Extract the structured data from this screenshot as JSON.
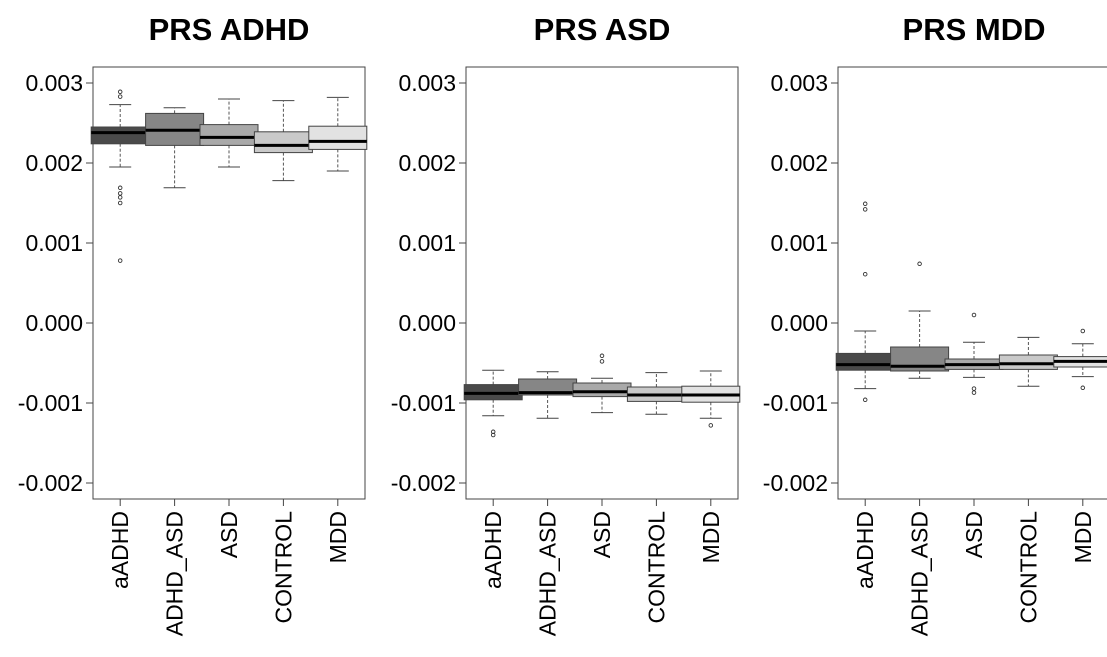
{
  "chart_data": [
    {
      "type": "box",
      "title": "PRS ADHD",
      "xlabel": "",
      "ylabel": "",
      "ylim": [
        -0.0022,
        0.0032
      ],
      "yticks": [
        "0.003",
        "0.002",
        "0.001",
        "0.000",
        "-0.001",
        "-0.002"
      ],
      "ytick_values": [
        0.003,
        0.002,
        0.001,
        0.0,
        -0.001,
        -0.002
      ],
      "categories": [
        "aADHD",
        "ADHD_ASD",
        "ASD",
        "CONTROL",
        "MDD"
      ],
      "colors": [
        "#4a4a4a",
        "#868686",
        "#a9a9a9",
        "#c9c9c9",
        "#e2e2e2"
      ],
      "boxes": [
        {
          "q1": 0.00224,
          "median": 0.00238,
          "q3": 0.00245,
          "whisker_low": 0.00195,
          "whisker_high": 0.00273,
          "outliers": [
            0.00289,
            0.00283,
            0.00169,
            0.00162,
            0.00157,
            0.0015,
            0.00078
          ]
        },
        {
          "q1": 0.00222,
          "median": 0.00241,
          "q3": 0.00262,
          "whisker_low": 0.00169,
          "whisker_high": 0.00269,
          "outliers": []
        },
        {
          "q1": 0.00222,
          "median": 0.00232,
          "q3": 0.00248,
          "whisker_low": 0.00195,
          "whisker_high": 0.0028,
          "outliers": []
        },
        {
          "q1": 0.00213,
          "median": 0.00222,
          "q3": 0.00239,
          "whisker_low": 0.00178,
          "whisker_high": 0.00278,
          "outliers": []
        },
        {
          "q1": 0.00217,
          "median": 0.00227,
          "q3": 0.00246,
          "whisker_low": 0.0019,
          "whisker_high": 0.00282,
          "outliers": []
        }
      ]
    },
    {
      "type": "box",
      "title": "PRS ASD",
      "xlabel": "",
      "ylabel": "",
      "ylim": [
        -0.0022,
        0.0032
      ],
      "yticks": [
        "0.003",
        "0.002",
        "0.001",
        "0.000",
        "-0.001",
        "-0.002"
      ],
      "ytick_values": [
        0.003,
        0.002,
        0.001,
        0.0,
        -0.001,
        -0.002
      ],
      "categories": [
        "aADHD",
        "ADHD_ASD",
        "ASD",
        "CONTROL",
        "MDD"
      ],
      "colors": [
        "#4a4a4a",
        "#868686",
        "#a9a9a9",
        "#c9c9c9",
        "#e2e2e2"
      ],
      "boxes": [
        {
          "q1": -0.00096,
          "median": -0.00088,
          "q3": -0.00077,
          "whisker_low": -0.00116,
          "whisker_high": -0.00059,
          "outliers": [
            -0.00136,
            -0.0014
          ]
        },
        {
          "q1": -0.0009,
          "median": -0.00087,
          "q3": -0.0007,
          "whisker_low": -0.00119,
          "whisker_high": -0.00061,
          "outliers": []
        },
        {
          "q1": -0.00092,
          "median": -0.00086,
          "q3": -0.00075,
          "whisker_low": -0.00112,
          "whisker_high": -0.00069,
          "outliers": [
            -0.00041,
            -0.00048
          ]
        },
        {
          "q1": -0.00098,
          "median": -0.0009,
          "q3": -0.0008,
          "whisker_low": -0.00114,
          "whisker_high": -0.00062,
          "outliers": []
        },
        {
          "q1": -0.00099,
          "median": -0.0009,
          "q3": -0.00079,
          "whisker_low": -0.00119,
          "whisker_high": -0.0006,
          "outliers": [
            -0.00128
          ]
        }
      ]
    },
    {
      "type": "box",
      "title": "PRS MDD",
      "xlabel": "",
      "ylabel": "",
      "ylim": [
        -0.0022,
        0.0032
      ],
      "yticks": [
        "0.003",
        "0.002",
        "0.001",
        "0.000",
        "-0.001",
        "-0.002"
      ],
      "ytick_values": [
        0.003,
        0.002,
        0.001,
        0.0,
        -0.001,
        -0.002
      ],
      "categories": [
        "aADHD",
        "ADHD_ASD",
        "ASD",
        "CONTROL",
        "MDD"
      ],
      "colors": [
        "#4a4a4a",
        "#868686",
        "#a9a9a9",
        "#c9c9c9",
        "#e2e2e2"
      ],
      "boxes": [
        {
          "q1": -0.00059,
          "median": -0.00052,
          "q3": -0.00038,
          "whisker_low": -0.00082,
          "whisker_high": -0.0001,
          "outliers": [
            0.00149,
            0.00142,
            0.00061,
            -0.00096
          ]
        },
        {
          "q1": -0.0006,
          "median": -0.00054,
          "q3": -0.0003,
          "whisker_low": -0.00069,
          "whisker_high": 0.00015,
          "outliers": [
            0.00074
          ]
        },
        {
          "q1": -0.00058,
          "median": -0.00052,
          "q3": -0.00045,
          "whisker_low": -0.00068,
          "whisker_high": -0.00024,
          "outliers": [
            0.0001,
            -0.00082,
            -0.00087
          ]
        },
        {
          "q1": -0.00058,
          "median": -0.00051,
          "q3": -0.0004,
          "whisker_low": -0.00079,
          "whisker_high": -0.00018,
          "outliers": []
        },
        {
          "q1": -0.00055,
          "median": -0.00048,
          "q3": -0.00042,
          "whisker_low": -0.00067,
          "whisker_high": -0.00026,
          "outliers": [
            -0.0001,
            -0.00081
          ]
        }
      ]
    }
  ]
}
